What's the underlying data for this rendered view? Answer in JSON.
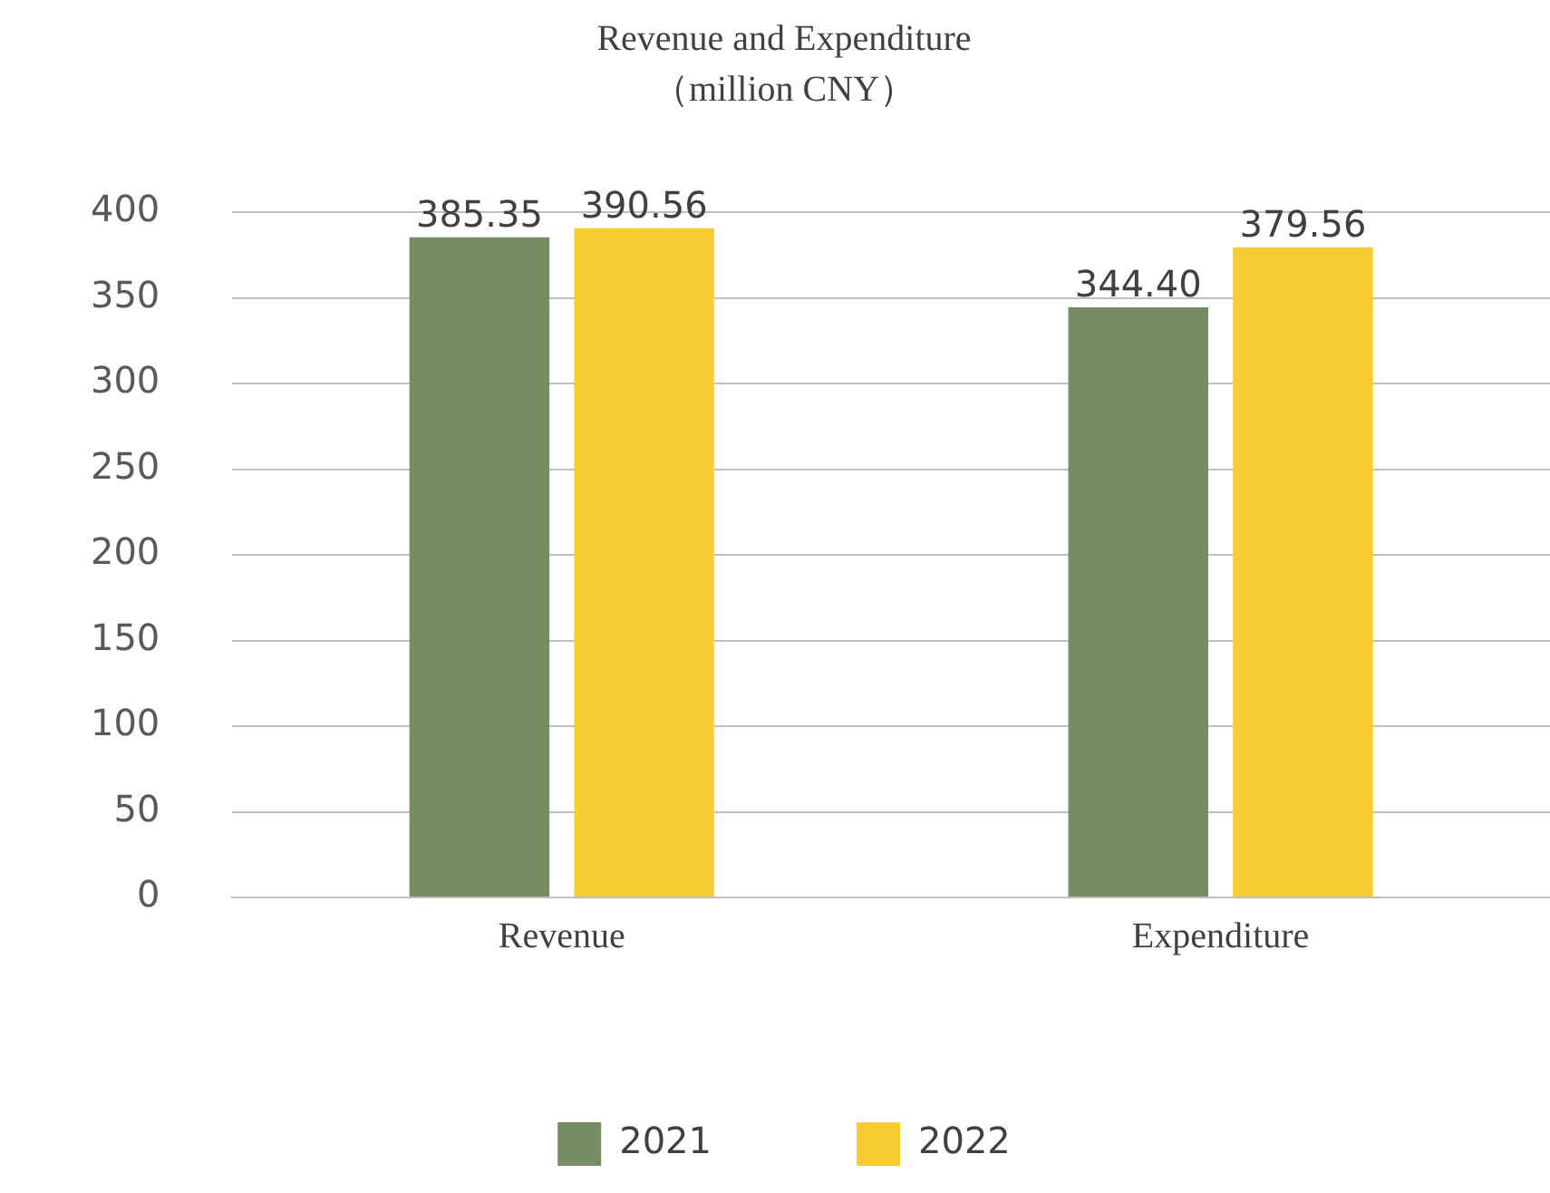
{
  "chart_data": {
    "type": "bar",
    "title": "Revenue and Expenditure",
    "subtitle": "（million CNY）",
    "categories": [
      "Revenue",
      "Expenditure"
    ],
    "series": [
      {
        "name": "2021",
        "color": "#768c64",
        "values": [
          385.35,
          344.4
        ]
      },
      {
        "name": "2022",
        "color": "#f7cd33",
        "values": [
          390.56,
          379.56
        ]
      }
    ],
    "value_labels": [
      [
        "385.35",
        "344.40"
      ],
      [
        "390.56",
        "379.56"
      ]
    ],
    "ylim": [
      0,
      400
    ],
    "yticks": [
      0,
      50,
      100,
      150,
      200,
      250,
      300,
      350,
      400
    ],
    "grid": "y",
    "legend": "bottom"
  }
}
